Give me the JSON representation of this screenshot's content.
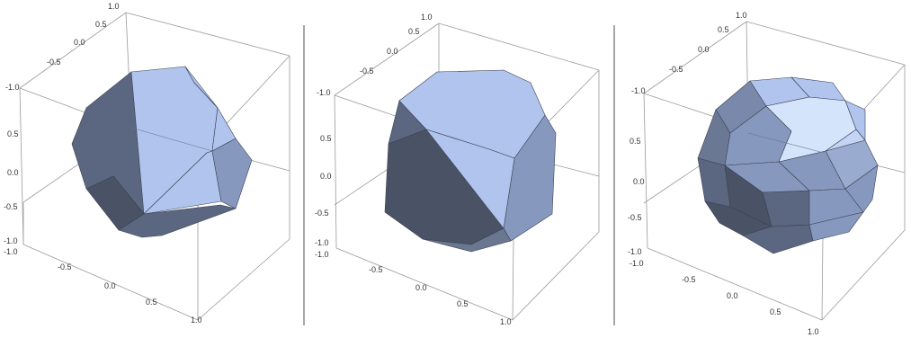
{
  "colors": {
    "face_light": "#b0c4ee",
    "face_mid": "#8798bf",
    "face_dark": "#5b6680",
    "face_darker": "#4a5366",
    "face_highlight": "#d4e4fb",
    "edge": "#3a4150",
    "box": "#9a9a9a",
    "separator": "#8a8a8a"
  },
  "panels": [
    {
      "id": "panel-1",
      "shape": "truncated octahedron",
      "ticks": {
        "top": [
          "1.0",
          "0.5",
          "0.0",
          "-0.5",
          "-1.0"
        ],
        "left": [
          "0.5",
          "0.0",
          "-0.5",
          "-1.0"
        ],
        "bottom": [
          "-1.0",
          "-0.5",
          "0.0",
          "0.5",
          "1.0"
        ]
      }
    },
    {
      "id": "panel-2",
      "shape": "truncated cube",
      "ticks": {
        "top": [
          "1.0",
          "0.5",
          "0.0",
          "-0.5",
          "-1.0"
        ],
        "left": [
          "0.5",
          "0.0",
          "-0.5",
          "-1.0"
        ],
        "bottom": [
          "-1.0",
          "-0.5",
          "0.0",
          "0.5",
          "1.0"
        ]
      }
    },
    {
      "id": "panel-3",
      "shape": "truncated cuboctahedron",
      "ticks": {
        "top": [
          "1.0",
          "0.5",
          "0.0",
          "-0.5",
          "-1.0"
        ],
        "left": [
          "0.5",
          "0.0",
          "-0.5",
          "-1.0"
        ],
        "bottom": [
          "-1.0",
          "-0.5",
          "0.0",
          "0.5",
          "1.0"
        ]
      }
    }
  ]
}
